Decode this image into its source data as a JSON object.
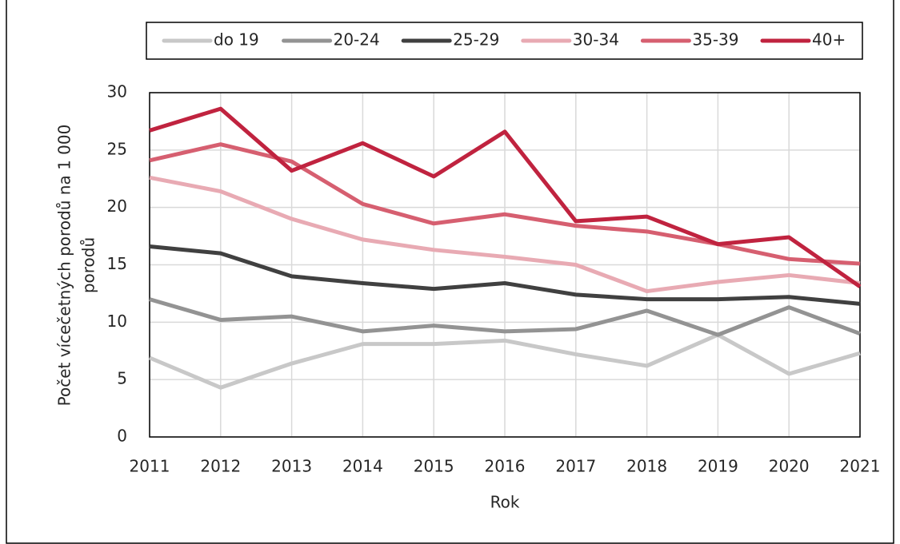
{
  "chart_data": {
    "type": "line",
    "xlabel": "Rok",
    "ylabel": [
      "Počet vícečetných porodů na 1 000",
      "porodů"
    ],
    "categories": [
      "2011",
      "2012",
      "2013",
      "2014",
      "2015",
      "2016",
      "2017",
      "2018",
      "2019",
      "2020",
      "2021"
    ],
    "series": [
      {
        "name": "do 19",
        "color": "#c8c8c8",
        "values": [
          6.9,
          4.3,
          6.4,
          8.1,
          8.1,
          8.4,
          7.2,
          6.2,
          8.9,
          5.5,
          7.3
        ]
      },
      {
        "name": "20-24",
        "color": "#939393",
        "values": [
          12.0,
          10.2,
          10.5,
          9.2,
          9.7,
          9.2,
          9.4,
          11.0,
          8.9,
          11.3,
          9.0
        ]
      },
      {
        "name": "25-29",
        "color": "#404040",
        "values": [
          16.6,
          16.0,
          14.0,
          13.4,
          12.9,
          13.4,
          12.4,
          12.0,
          12.0,
          12.2,
          11.6
        ]
      },
      {
        "name": "30-34",
        "color": "#e8aab3",
        "values": [
          22.6,
          21.4,
          19.0,
          17.2,
          16.3,
          15.7,
          15.0,
          12.7,
          13.5,
          14.1,
          13.4
        ]
      },
      {
        "name": "35-39",
        "color": "#d65f70",
        "values": [
          24.1,
          25.5,
          24.0,
          20.3,
          18.6,
          19.4,
          18.4,
          17.9,
          16.8,
          15.5,
          15.1
        ]
      },
      {
        "name": "40+",
        "color": "#c0233f",
        "values": [
          26.7,
          28.6,
          23.2,
          25.6,
          22.7,
          26.6,
          18.8,
          19.2,
          16.8,
          17.4,
          13.1
        ]
      }
    ],
    "ylim": [
      0,
      30
    ],
    "yticks": [
      0,
      5,
      10,
      15,
      20,
      25,
      30
    ],
    "grid": true,
    "legend": "top"
  }
}
